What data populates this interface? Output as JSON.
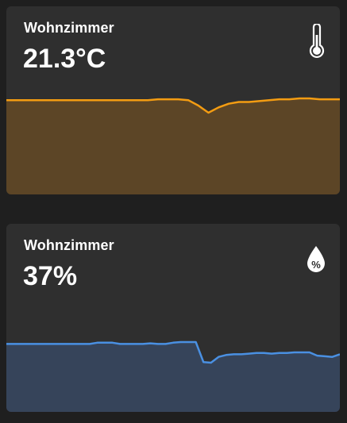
{
  "cards": [
    {
      "name": "Wohnzimmer",
      "value": "21.3°C",
      "icon": "thermometer-icon",
      "color": "#f39c12",
      "fill": "#5c4526",
      "history": [
        21.3,
        21.3,
        21.3,
        21.3,
        21.3,
        21.3,
        21.3,
        21.3,
        21.3,
        21.3,
        21.3,
        21.3,
        21.3,
        21.3,
        21.3,
        21.35,
        21.35,
        21.35,
        21.3,
        21.0,
        20.6,
        20.9,
        21.1,
        21.2,
        21.2,
        21.25,
        21.3,
        21.35,
        21.35,
        21.4,
        21.4,
        21.35,
        21.35,
        21.35
      ]
    },
    {
      "name": "Wohnzimmer",
      "value": "37%",
      "icon": "water-percent-icon",
      "color": "#4a90e2",
      "fill": "#36445a",
      "history": [
        37,
        37,
        37,
        37,
        37,
        37,
        37,
        37,
        37,
        37,
        37,
        37,
        37.2,
        37.2,
        37.2,
        37,
        37,
        37,
        37,
        37.1,
        37,
        37,
        37.2,
        37.3,
        37.3,
        37.3,
        34.2,
        34.1,
        35.0,
        35.3,
        35.4,
        35.4,
        35.5,
        35.6,
        35.6,
        35.5,
        35.6,
        35.6,
        35.7,
        35.7,
        35.7,
        35.2,
        35.1,
        35.0,
        35.4
      ]
    }
  ]
}
